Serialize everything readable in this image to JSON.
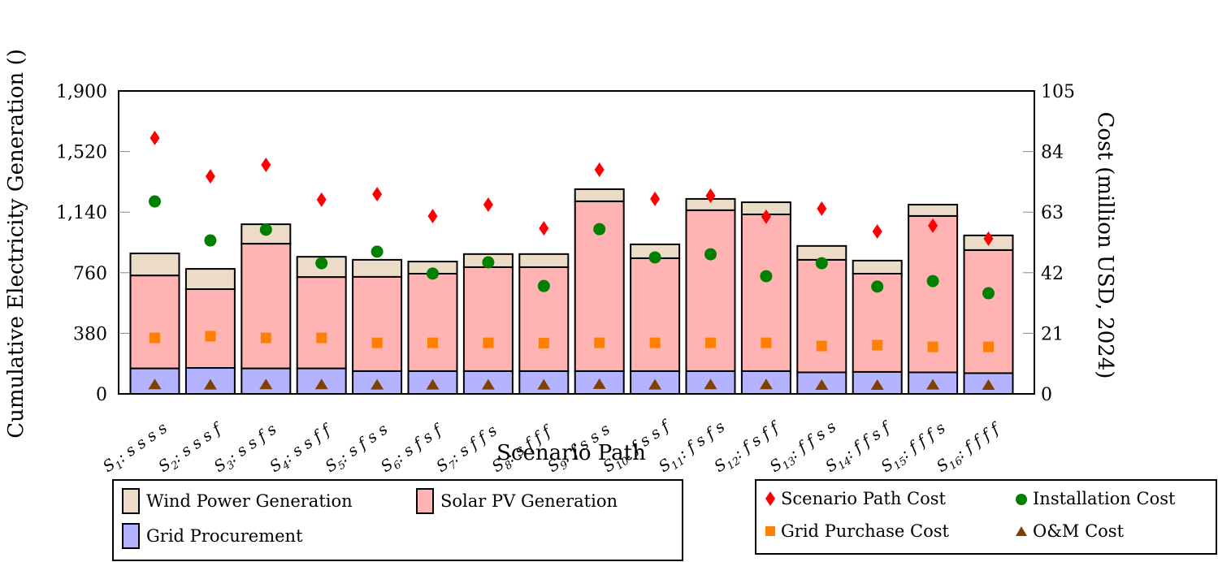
{
  "chart_data": {
    "type": "bar",
    "stacked": true,
    "title": "",
    "xlabel": "Scenario Path",
    "ylabel": "Cumulative Electricity Generation ()",
    "ylabel_right": "Cost (million USD, 2024)",
    "ylim": [
      0,
      1900
    ],
    "ylim_right": [
      0,
      105
    ],
    "yticks": [
      "0",
      "380",
      "760",
      "1,140",
      "1,520",
      "1,900"
    ],
    "yticks_values": [
      0,
      380,
      760,
      1140,
      1520,
      1900
    ],
    "yticks_right": [
      "0",
      "21",
      "42",
      "63",
      "84",
      "105"
    ],
    "yticks_right_values": [
      0,
      21,
      42,
      63,
      84,
      105
    ],
    "grid": false,
    "categories": [
      "S1: ssss",
      "S2: sssf",
      "S3: ssfs",
      "S4: ssff",
      "S5: sfss",
      "S6: sfsf",
      "S7: sffs",
      "S8: sfff",
      "S9: fsss",
      "S10: fssf",
      "S11: fsfs",
      "S12: fsff",
      "S13: ffss",
      "S14: ffsf",
      "S15: fffs",
      "S16: ffff"
    ],
    "category_labels": [
      {
        "sub": "1",
        "path": "ssss"
      },
      {
        "sub": "2",
        "path": "sssf"
      },
      {
        "sub": "3",
        "path": "ssfs"
      },
      {
        "sub": "4",
        "path": "ssff"
      },
      {
        "sub": "5",
        "path": "sfss"
      },
      {
        "sub": "6",
        "path": "sfsf"
      },
      {
        "sub": "7",
        "path": "sffs"
      },
      {
        "sub": "8",
        "path": "sfff"
      },
      {
        "sub": "9",
        "path": "fsss"
      },
      {
        "sub": "10",
        "path": "fssf"
      },
      {
        "sub": "11",
        "path": "fsfs"
      },
      {
        "sub": "12",
        "path": "fsff"
      },
      {
        "sub": "13",
        "path": "ffss"
      },
      {
        "sub": "14",
        "path": "ffsf"
      },
      {
        "sub": "15",
        "path": "fffs"
      },
      {
        "sub": "16",
        "path": "ffff"
      }
    ],
    "series": [
      {
        "name": "Grid Procurement",
        "axis": "left",
        "kind": "bar",
        "color": "#b3b3ff",
        "values": [
          160,
          163,
          160,
          160,
          143,
          143,
          143,
          143,
          143,
          143,
          143,
          143,
          135,
          138,
          135,
          130
        ]
      },
      {
        "name": "Solar PV Generation",
        "axis": "left",
        "kind": "bar",
        "color": "#ffb3b3",
        "values": [
          583,
          494,
          782,
          573,
          591,
          611,
          652,
          652,
          1065,
          708,
          1009,
          983,
          706,
          616,
          981,
          772
        ]
      },
      {
        "name": "Wind Power Generation",
        "axis": "left",
        "kind": "bar",
        "color": "#ebdbc7",
        "values": [
          138,
          127,
          122,
          127,
          107,
          76,
          82,
          82,
          76,
          87,
          71,
          76,
          87,
          82,
          71,
          92
        ]
      },
      {
        "name": "Scenario Path Cost",
        "axis": "right",
        "kind": "scatter",
        "marker": "diamond",
        "color": "#ff0000",
        "values": [
          88.7,
          75.4,
          79.4,
          67.3,
          69.2,
          61.6,
          65.6,
          57.4,
          77.7,
          67.6,
          68.7,
          61.4,
          64.2,
          56.3,
          58.3,
          53.8
        ]
      },
      {
        "name": "Installation Cost",
        "axis": "right",
        "kind": "scatter",
        "marker": "circle",
        "color": "#008000",
        "values": [
          66.7,
          53.2,
          56.9,
          45.3,
          49.3,
          41.7,
          45.6,
          37.4,
          57.1,
          47.3,
          48.4,
          40.8,
          45.3,
          37.2,
          39.1,
          34.9
        ]
      },
      {
        "name": "Grid Purchase Cost",
        "axis": "right",
        "kind": "scatter",
        "marker": "square",
        "color": "#ff8000",
        "values": [
          19.4,
          20.0,
          19.4,
          19.4,
          17.7,
          17.7,
          17.7,
          17.6,
          17.7,
          17.7,
          17.7,
          17.7,
          16.6,
          16.9,
          16.3,
          16.3
        ]
      },
      {
        "name": "O&M Cost",
        "axis": "right",
        "kind": "scatter",
        "marker": "triangle",
        "color": "#804000",
        "values": [
          3.3,
          3.2,
          3.3,
          3.3,
          3.2,
          3.2,
          3.2,
          3.2,
          3.4,
          3.2,
          3.3,
          3.3,
          3.1,
          3.1,
          3.2,
          3.1
        ]
      }
    ],
    "legend_left": [
      "Wind Power Generation",
      "Solar PV Generation",
      "Grid Procurement"
    ],
    "legend_right": [
      "Scenario Path Cost",
      "Installation Cost",
      "Grid Purchase Cost",
      "O&M Cost"
    ],
    "legend_placement": "bottom"
  },
  "legend": {
    "wind": "Wind Power Generation",
    "solar": "Solar PV Generation",
    "grid": "Grid Procurement",
    "path_cost": "Scenario Path Cost",
    "install_cost": "Installation Cost",
    "grid_cost": "Grid Purchase Cost",
    "om_cost": "O&M Cost"
  }
}
